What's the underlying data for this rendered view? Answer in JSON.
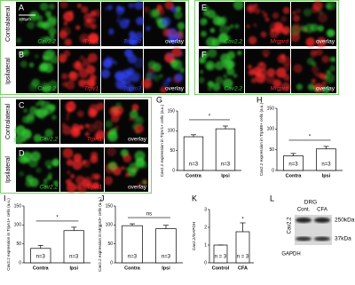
{
  "micrographs": [
    {
      "panel": "A",
      "side": "Contralateral",
      "scale_bar": "100µm",
      "channels": [
        {
          "label": "Cav2.2",
          "color": "#33cc33"
        },
        {
          "label": "Trpv1",
          "color": "#ff2a2a"
        },
        {
          "label": "Topro3",
          "color": "#3344ff"
        },
        {
          "label": "overlay",
          "color": "#ffffff"
        }
      ]
    },
    {
      "panel": "B",
      "side": "Ipsilateral",
      "channels": [
        {
          "label": "Cav2.2",
          "color": "#33cc33"
        },
        {
          "label": "Trpv1",
          "color": "#ff2a2a"
        },
        {
          "label": "Topro3",
          "color": "#3344ff"
        },
        {
          "label": "overlay",
          "color": "#ffffff"
        }
      ]
    },
    {
      "panel": "E",
      "channels": [
        {
          "label": "Cav2.2",
          "color": "#33cc33"
        },
        {
          "label": "Mrgprd",
          "color": "#ff2a2a"
        },
        {
          "label": "overlay",
          "color": "#ffffff"
        }
      ]
    },
    {
      "panel": "F",
      "channels": [
        {
          "label": "Cav2.2",
          "color": "#33cc33"
        },
        {
          "label": "Mrgprd",
          "color": "#ff2a2a"
        },
        {
          "label": "overlay",
          "color": "#ffffff"
        }
      ]
    },
    {
      "panel": "C",
      "side": "Contralateral",
      "channels": [
        {
          "label": "Cav2.2",
          "color": "#33cc33"
        },
        {
          "label": "TrpA1",
          "color": "#ff2a2a"
        },
        {
          "label": "overlay",
          "color": "#ffffff"
        }
      ]
    },
    {
      "panel": "D",
      "side": "Ipsilateral",
      "channels": [
        {
          "label": "Cav2.2",
          "color": "#33cc33"
        },
        {
          "label": "TrpA1",
          "color": "#ff2a2a"
        },
        {
          "label": "overlay",
          "color": "#ffffff"
        }
      ]
    }
  ],
  "chart_data": [
    {
      "type": "bar",
      "panel": "G",
      "y_label": "Cav2.2 expression in TrpV1+ cells (a.u.)",
      "categories": [
        "Contra",
        "Ipsi"
      ],
      "values": [
        85,
        105
      ],
      "errors": [
        5,
        7
      ],
      "bar_labels": [
        "n=3",
        "n=3"
      ],
      "significance": "*",
      "ylim": [
        0,
        150
      ],
      "yticks": [
        0,
        50,
        100,
        150
      ]
    },
    {
      "type": "bar",
      "panel": "H",
      "y_label": "Cav2.2 expression in TrpM8+ cells (a.u.)",
      "categories": [
        "Contra",
        "Ipsi"
      ],
      "values": [
        35,
        52
      ],
      "errors": [
        6,
        6
      ],
      "bar_labels": [
        "n=3",
        "n=3"
      ],
      "significance": "*",
      "ylim": [
        0,
        150
      ],
      "yticks": [
        0,
        50,
        100,
        150
      ]
    },
    {
      "type": "bar",
      "panel": "I",
      "y_label": "Cav2.2 expression in TrpA1+ cells (a.u.)",
      "categories": [
        "Contra",
        "Ipsi"
      ],
      "values": [
        38,
        85
      ],
      "errors": [
        8,
        9
      ],
      "bar_labels": [
        "n=3",
        "n=3"
      ],
      "significance": "*",
      "ylim": [
        0,
        150
      ],
      "yticks": [
        0,
        50,
        100,
        150
      ]
    },
    {
      "type": "bar",
      "panel": "J",
      "y_label": "Cav2.2 expression in Mrgprd+ cells (a.u.)",
      "categories": [
        "Contra",
        "Ipsi"
      ],
      "values": [
        98,
        90
      ],
      "errors": [
        5,
        9
      ],
      "bar_labels": [
        "n=3",
        "n=3"
      ],
      "significance": "ns",
      "ylim": [
        0,
        150
      ],
      "yticks": [
        0,
        50,
        100,
        150
      ]
    },
    {
      "type": "bar",
      "panel": "K",
      "y_label": "Cav2.2/GAPDH",
      "categories": [
        "Control",
        "CFA"
      ],
      "values": [
        1,
        1.75
      ],
      "errors": [
        0,
        0.5
      ],
      "bar_labels": [
        "n = 3",
        "n = 3"
      ],
      "bar_star": "*",
      "ylim": [
        0,
        3
      ],
      "yticks": [
        0,
        1,
        2,
        3
      ]
    }
  ],
  "blot": {
    "panel": "L",
    "tissue": "DRG",
    "lanes": [
      "Cont.",
      "CFA"
    ],
    "bands": [
      {
        "name": "Cav2.2",
        "size": "250kDa"
      },
      {
        "name": "GAPDH",
        "size": "37kDa"
      }
    ]
  }
}
